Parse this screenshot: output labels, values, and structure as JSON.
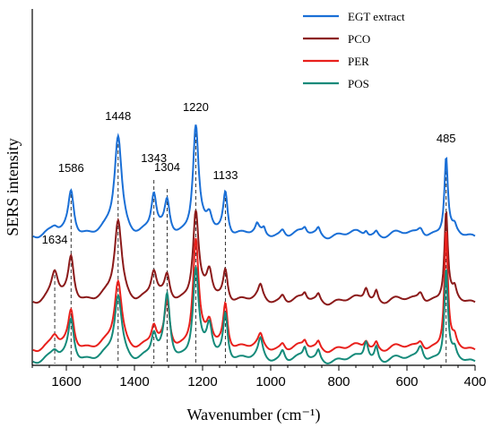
{
  "chart_data": {
    "type": "line",
    "xlabel": "Wavenumber (cm⁻¹)",
    "ylabel": "SERS intensity",
    "xlim": [
      1700,
      400
    ],
    "x_reversed": true,
    "xticks": [
      1600,
      1400,
      1200,
      1000,
      800,
      600,
      400
    ],
    "y_ticks_shown": false,
    "legend_position": "top-right",
    "series": [
      {
        "name": "EGT extract",
        "color": "#1a6fd6",
        "baseline": 140,
        "peaks": [
          [
            1634,
            6,
            12
          ],
          [
            1586,
            48,
            10
          ],
          [
            1448,
            110,
            13
          ],
          [
            1343,
            42,
            9
          ],
          [
            1304,
            35,
            9
          ],
          [
            1220,
            120,
            10
          ],
          [
            1180,
            18,
            10
          ],
          [
            1133,
            48,
            8
          ],
          [
            1040,
            8,
            6
          ],
          [
            1020,
            6,
            5
          ],
          [
            965,
            7,
            8
          ],
          [
            900,
            6,
            6
          ],
          [
            860,
            7,
            6
          ],
          [
            720,
            6,
            6
          ],
          [
            690,
            5,
            6
          ],
          [
            560,
            10,
            10
          ],
          [
            485,
            85,
            6
          ],
          [
            460,
            6,
            6
          ]
        ]
      },
      {
        "name": "PCO",
        "color": "#8b1a1a",
        "baseline": 66,
        "peaks": [
          [
            1634,
            30,
            12
          ],
          [
            1586,
            48,
            10
          ],
          [
            1448,
            90,
            13
          ],
          [
            1343,
            30,
            10
          ],
          [
            1304,
            26,
            9
          ],
          [
            1220,
            98,
            10
          ],
          [
            1180,
            30,
            10
          ],
          [
            1133,
            35,
            8
          ],
          [
            1030,
            14,
            8
          ],
          [
            965,
            8,
            8
          ],
          [
            900,
            7,
            6
          ],
          [
            860,
            7,
            6
          ],
          [
            720,
            16,
            8
          ],
          [
            690,
            12,
            6
          ],
          [
            560,
            12,
            10
          ],
          [
            485,
            98,
            6
          ],
          [
            460,
            10,
            6
          ]
        ]
      },
      {
        "name": "PER",
        "color": "#e8201c",
        "baseline": 13,
        "peaks": [
          [
            1634,
            12,
            12
          ],
          [
            1586,
            42,
            10
          ],
          [
            1448,
            75,
            13
          ],
          [
            1343,
            22,
            9
          ],
          [
            1304,
            50,
            9
          ],
          [
            1220,
            120,
            10
          ],
          [
            1180,
            25,
            10
          ],
          [
            1133,
            50,
            8
          ],
          [
            1030,
            12,
            8
          ],
          [
            965,
            7,
            8
          ],
          [
            900,
            7,
            6
          ],
          [
            860,
            7,
            6
          ],
          [
            720,
            10,
            8
          ],
          [
            690,
            8,
            6
          ],
          [
            560,
            10,
            10
          ],
          [
            485,
            130,
            6
          ],
          [
            460,
            8,
            6
          ]
        ]
      },
      {
        "name": "POS",
        "color": "#158a7a",
        "baseline": 0,
        "peaks": [
          [
            1634,
            8,
            12
          ],
          [
            1586,
            45,
            10
          ],
          [
            1448,
            72,
            13
          ],
          [
            1343,
            25,
            9
          ],
          [
            1304,
            70,
            10
          ],
          [
            1220,
            100,
            10
          ],
          [
            1180,
            35,
            10
          ],
          [
            1133,
            52,
            8
          ],
          [
            1030,
            20,
            8
          ],
          [
            965,
            12,
            8
          ],
          [
            900,
            12,
            6
          ],
          [
            860,
            10,
            6
          ],
          [
            720,
            22,
            8
          ],
          [
            690,
            15,
            6
          ],
          [
            560,
            18,
            10
          ],
          [
            485,
            100,
            6
          ],
          [
            460,
            8,
            6
          ]
        ]
      }
    ],
    "peak_labels": [
      {
        "text": "1634",
        "x": 1634,
        "y": 130
      },
      {
        "text": "1586",
        "x": 1586,
        "y": 210
      },
      {
        "text": "1448",
        "x": 1448,
        "y": 268
      },
      {
        "text": "1343",
        "x": 1343,
        "y": 221
      },
      {
        "text": "1304",
        "x": 1304,
        "y": 211
      },
      {
        "text": "1220",
        "x": 1220,
        "y": 278
      },
      {
        "text": "1133",
        "x": 1133,
        "y": 202
      },
      {
        "text": "485",
        "x": 485,
        "y": 243
      }
    ],
    "dashed_lines": [
      {
        "x": 1634,
        "y_top": 95
      },
      {
        "x": 1586,
        "y_top": 185
      },
      {
        "x": 1448,
        "y_top": 248
      },
      {
        "x": 1343,
        "y_top": 201
      },
      {
        "x": 1304,
        "y_top": 191
      },
      {
        "x": 1220,
        "y_top": 260
      },
      {
        "x": 1133,
        "y_top": 188
      },
      {
        "x": 485,
        "y_top": 225
      }
    ]
  }
}
